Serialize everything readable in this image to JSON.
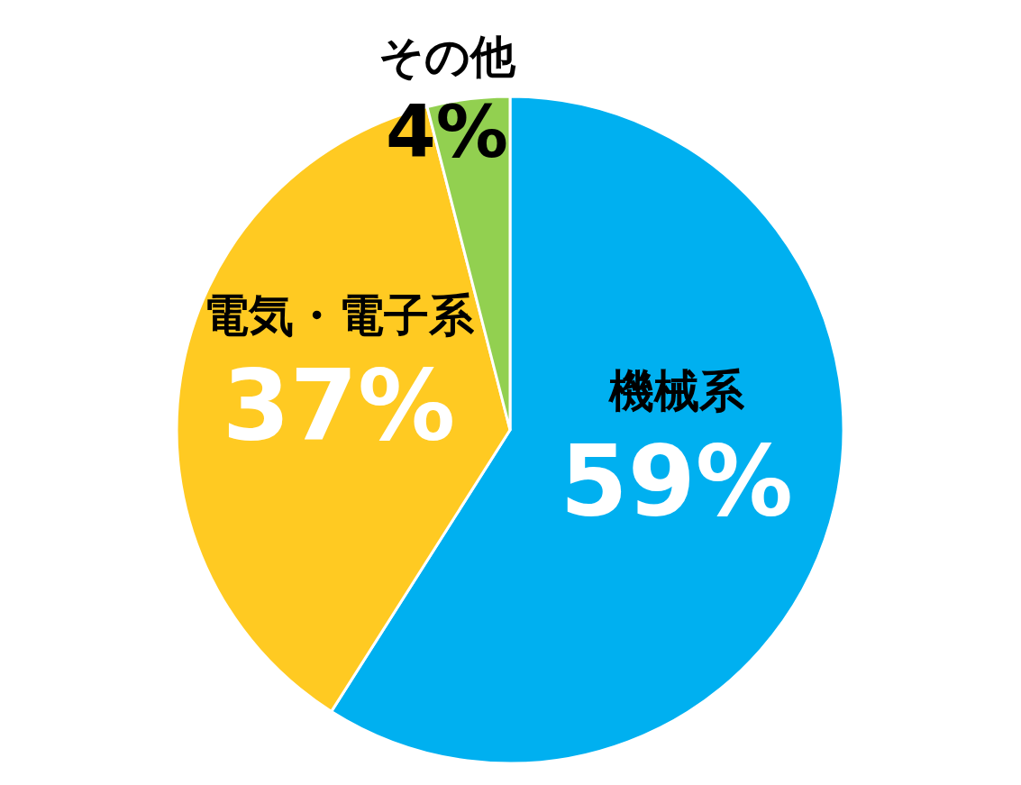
{
  "chart_data": {
    "type": "pie",
    "categories": [
      "機械系",
      "電気・電子系",
      "その他"
    ],
    "values": [
      59,
      37,
      4
    ],
    "colors": [
      "#00b0f0",
      "#ffca22",
      "#92d050"
    ],
    "value_labels": [
      "59%",
      "37%",
      "4%"
    ]
  }
}
